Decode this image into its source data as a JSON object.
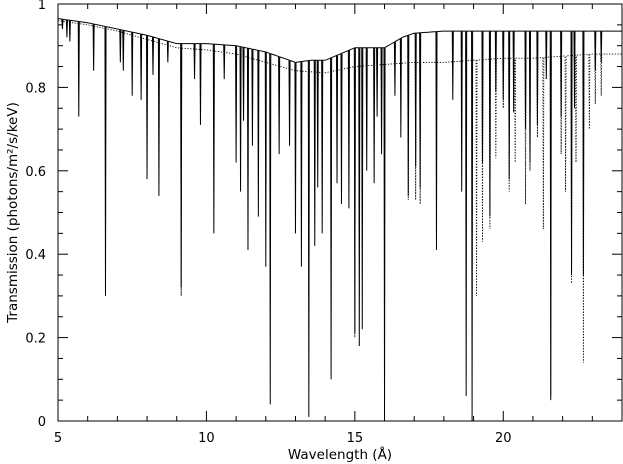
{
  "chart_data": {
    "type": "line",
    "title": "",
    "xlabel": "Wavelength (Å)",
    "ylabel": "Transmission (photons/m²/s/keV)",
    "xlim": [
      5,
      24
    ],
    "ylim": [
      0,
      1
    ],
    "xticks": [
      5,
      10,
      15,
      20
    ],
    "yticks": [
      0,
      0.2,
      0.4,
      0.6,
      0.8,
      1
    ],
    "x_tick_labels": [
      "5",
      "10",
      "15",
      "20"
    ],
    "y_tick_labels": [
      "0",
      "0.2",
      "0.4",
      "0.6",
      "0.8",
      "1"
    ],
    "grid": false,
    "legend": null,
    "series": [
      {
        "style": "solid",
        "color": "#000000",
        "continuum": [
          [
            5.0,
            0.965
          ],
          [
            6.0,
            0.955
          ],
          [
            7.0,
            0.94
          ],
          [
            8.0,
            0.925
          ],
          [
            9.0,
            0.905
          ],
          [
            10.0,
            0.905
          ],
          [
            11.0,
            0.9
          ],
          [
            12.0,
            0.885
          ],
          [
            13.0,
            0.86
          ],
          [
            13.5,
            0.865
          ],
          [
            14.0,
            0.865
          ],
          [
            15.0,
            0.895
          ],
          [
            16.0,
            0.895
          ],
          [
            16.6,
            0.92
          ],
          [
            17.0,
            0.93
          ],
          [
            18.0,
            0.935
          ],
          [
            19.0,
            0.935
          ],
          [
            20.0,
            0.935
          ],
          [
            21.0,
            0.935
          ],
          [
            22.0,
            0.935
          ],
          [
            23.0,
            0.935
          ],
          [
            24.0,
            0.935
          ]
        ],
        "absorption_lines": [
          [
            5.15,
            0.94
          ],
          [
            5.3,
            0.92
          ],
          [
            5.4,
            0.91
          ],
          [
            5.7,
            0.73
          ],
          [
            6.2,
            0.84
          ],
          [
            6.6,
            0.3
          ],
          [
            7.1,
            0.86
          ],
          [
            7.2,
            0.84
          ],
          [
            7.5,
            0.78
          ],
          [
            7.8,
            0.77
          ],
          [
            8.0,
            0.58
          ],
          [
            8.2,
            0.83
          ],
          [
            8.4,
            0.54
          ],
          [
            8.7,
            0.86
          ],
          [
            9.15,
            0.32
          ],
          [
            9.6,
            0.82
          ],
          [
            9.8,
            0.71
          ],
          [
            10.25,
            0.45
          ],
          [
            10.6,
            0.82
          ],
          [
            11.0,
            0.62
          ],
          [
            11.15,
            0.55
          ],
          [
            11.25,
            0.72
          ],
          [
            11.4,
            0.41
          ],
          [
            11.55,
            0.66
          ],
          [
            11.75,
            0.49
          ],
          [
            12.0,
            0.37
          ],
          [
            12.15,
            0.04
          ],
          [
            12.45,
            0.64
          ],
          [
            12.8,
            0.66
          ],
          [
            13.0,
            0.45
          ],
          [
            13.2,
            0.37
          ],
          [
            13.45,
            0.01
          ],
          [
            13.65,
            0.42
          ],
          [
            13.75,
            0.56
          ],
          [
            13.9,
            0.45
          ],
          [
            14.2,
            0.1
          ],
          [
            14.4,
            0.57
          ],
          [
            14.55,
            0.52
          ],
          [
            14.8,
            0.51
          ],
          [
            15.0,
            0.21
          ],
          [
            15.15,
            0.18
          ],
          [
            15.25,
            0.22
          ],
          [
            15.4,
            0.6
          ],
          [
            15.65,
            0.57
          ],
          [
            15.75,
            0.73
          ],
          [
            15.9,
            0.64
          ],
          [
            16.0,
            0.01
          ],
          [
            16.35,
            0.78
          ],
          [
            16.55,
            0.68
          ],
          [
            16.8,
            0.54
          ],
          [
            17.05,
            0.61
          ],
          [
            17.2,
            0.56
          ],
          [
            17.75,
            0.41
          ],
          [
            18.3,
            0.77
          ],
          [
            18.6,
            0.55
          ],
          [
            18.75,
            0.06
          ],
          [
            18.95,
            0.0
          ],
          [
            19.3,
            0.62
          ],
          [
            19.55,
            0.49
          ],
          [
            19.75,
            0.79
          ],
          [
            20.0,
            0.77
          ],
          [
            20.2,
            0.58
          ],
          [
            20.35,
            0.74
          ],
          [
            20.75,
            0.7
          ],
          [
            20.9,
            0.62
          ],
          [
            21.15,
            0.71
          ],
          [
            21.45,
            0.82
          ],
          [
            21.6,
            0.05
          ],
          [
            21.95,
            0.73
          ],
          [
            22.3,
            0.35
          ],
          [
            22.4,
            0.75
          ],
          [
            22.7,
            0.35
          ],
          [
            23.1,
            0.84
          ],
          [
            23.3,
            0.86
          ]
        ]
      },
      {
        "style": "dotted",
        "color": "#000000",
        "continuum": [
          [
            5.0,
            0.96
          ],
          [
            6.0,
            0.95
          ],
          [
            7.0,
            0.935
          ],
          [
            8.0,
            0.915
          ],
          [
            9.0,
            0.895
          ],
          [
            10.0,
            0.89
          ],
          [
            11.0,
            0.88
          ],
          [
            12.0,
            0.86
          ],
          [
            13.0,
            0.84
          ],
          [
            14.0,
            0.835
          ],
          [
            15.0,
            0.85
          ],
          [
            16.0,
            0.855
          ],
          [
            17.0,
            0.86
          ],
          [
            18.0,
            0.86
          ],
          [
            19.0,
            0.865
          ],
          [
            20.0,
            0.87
          ],
          [
            21.0,
            0.87
          ],
          [
            22.0,
            0.875
          ],
          [
            23.0,
            0.88
          ],
          [
            24.0,
            0.88
          ]
        ],
        "absorption_lines": [
          [
            9.15,
            0.3
          ],
          [
            15.0,
            0.2
          ],
          [
            16.8,
            0.53
          ],
          [
            17.05,
            0.53
          ],
          [
            17.2,
            0.52
          ],
          [
            19.1,
            0.3
          ],
          [
            19.3,
            0.43
          ],
          [
            19.55,
            0.46
          ],
          [
            19.75,
            0.63
          ],
          [
            20.0,
            0.75
          ],
          [
            20.2,
            0.55
          ],
          [
            20.4,
            0.62
          ],
          [
            20.75,
            0.52
          ],
          [
            20.9,
            0.6
          ],
          [
            21.15,
            0.68
          ],
          [
            21.35,
            0.46
          ],
          [
            21.6,
            0.06
          ],
          [
            21.95,
            0.64
          ],
          [
            22.1,
            0.55
          ],
          [
            22.3,
            0.33
          ],
          [
            22.45,
            0.62
          ],
          [
            22.7,
            0.14
          ],
          [
            22.9,
            0.7
          ],
          [
            23.1,
            0.76
          ],
          [
            23.3,
            0.78
          ]
        ]
      }
    ]
  }
}
